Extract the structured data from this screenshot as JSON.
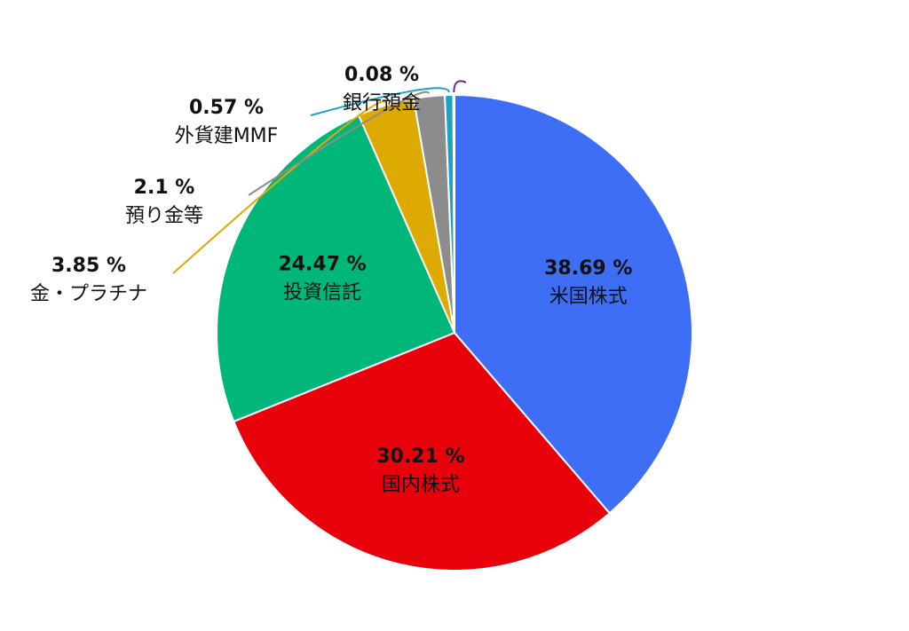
{
  "chart_data": {
    "type": "pie",
    "categories": [
      "米国株式",
      "国内株式",
      "投資信託",
      "金・プラチナ",
      "預り金等",
      "外貨建MMF",
      "銀行預金"
    ],
    "values": [
      38.69,
      30.21,
      24.47,
      3.85,
      2.1,
      0.57,
      0.08
    ],
    "value_labels": [
      "38.69 %",
      "30.21 %",
      "24.47 %",
      "3.85 %",
      "2.1 %",
      "0.57 %",
      "0.08 %"
    ],
    "colors": [
      "#3d6ef5",
      "#e8000b",
      "#00b779",
      "#dcaa00",
      "#8c8c8c",
      "#1aa3c4",
      "#6a2a8a"
    ]
  }
}
